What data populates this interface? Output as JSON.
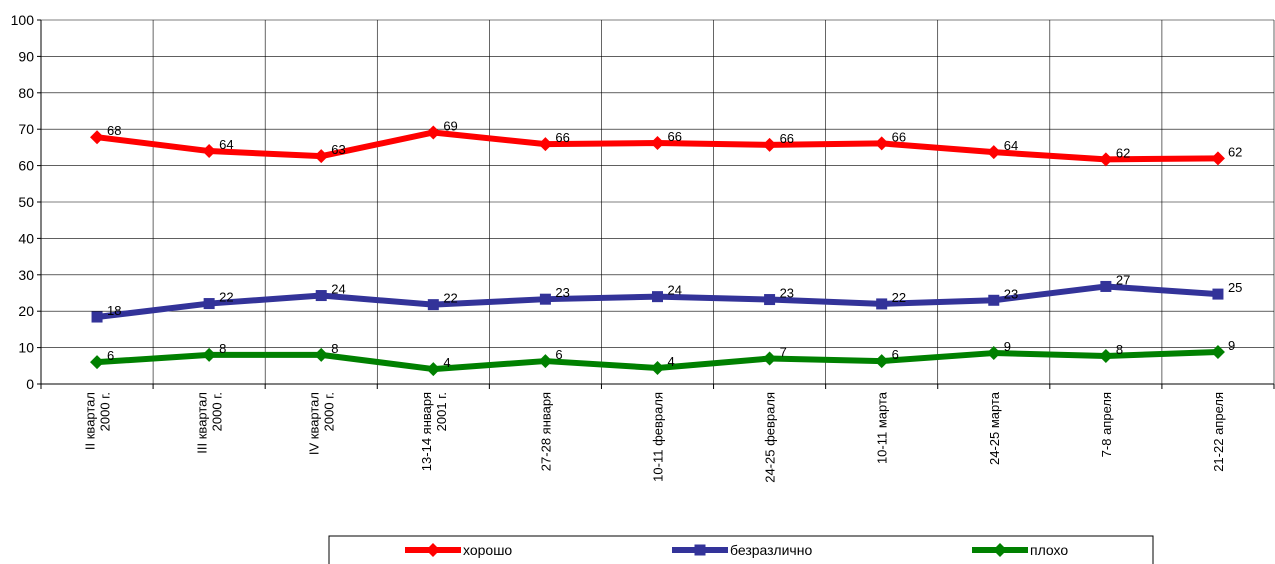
{
  "chart_data": {
    "type": "line",
    "categories": [
      [
        "II квартал",
        "2000 г."
      ],
      [
        "III квартал",
        "2000 г."
      ],
      [
        "IV квартал",
        "2000 г."
      ],
      [
        "13-14 января",
        "2001 г."
      ],
      [
        "27-28 января"
      ],
      [
        "10-11 февраля"
      ],
      [
        "24-25 февраля"
      ],
      [
        "10-11 марта"
      ],
      [
        "24-25 марта"
      ],
      [
        "7-8 апреля"
      ],
      [
        "21-22 апреля"
      ]
    ],
    "ylim": [
      0,
      100
    ],
    "yticks": [
      0,
      10,
      20,
      30,
      40,
      50,
      60,
      70,
      80,
      90,
      100
    ],
    "grid": true,
    "legend_position": "bottom",
    "series": [
      {
        "name": "хорошо",
        "color": "#ff0000",
        "marker": "diamond",
        "values": [
          67.8,
          64,
          62.6,
          69.1,
          65.9,
          66.2,
          65.7,
          66.1,
          63.7,
          61.7,
          62
        ],
        "labels": [
          68,
          64,
          63,
          69,
          66,
          66,
          66,
          66,
          64,
          62,
          62
        ]
      },
      {
        "name": "безразлично",
        "color": "#333399",
        "marker": "square",
        "values": [
          18.4,
          22.1,
          24.3,
          21.8,
          23.3,
          24,
          23.2,
          22,
          23,
          26.8,
          24.7
        ],
        "labels": [
          18,
          22,
          24,
          22,
          23,
          24,
          23,
          22,
          23,
          27,
          25
        ]
      },
      {
        "name": "плохо",
        "color": "#008000",
        "marker": "diamond",
        "values": [
          6,
          8,
          8,
          4.1,
          6.3,
          4.4,
          7,
          6.3,
          8.5,
          7.7,
          8.8
        ],
        "labels": [
          6,
          8,
          8,
          4,
          6,
          4,
          7,
          6,
          9,
          8,
          9
        ]
      }
    ]
  }
}
